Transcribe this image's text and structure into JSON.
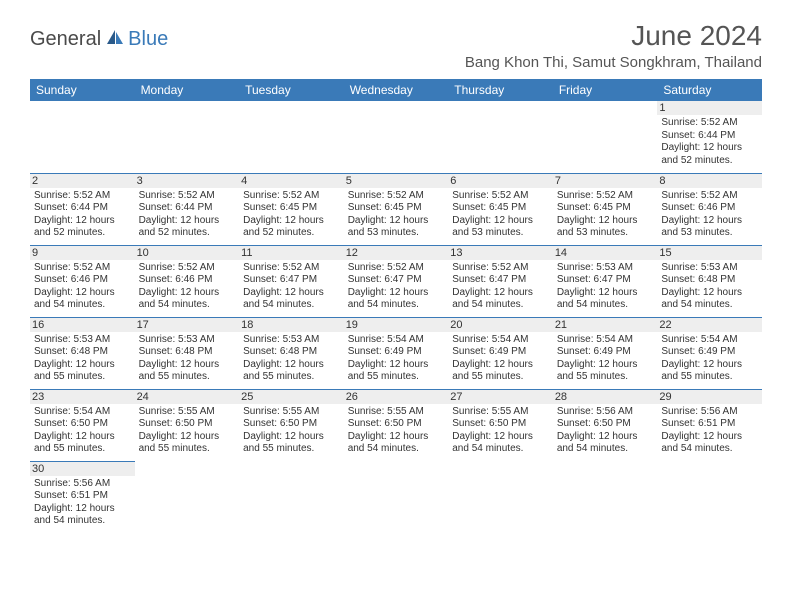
{
  "brand": {
    "part1": "General",
    "part2": "Blue"
  },
  "title": "June 2024",
  "location": "Bang Khon Thi, Samut Songkhram, Thailand",
  "colors": {
    "header_bg": "#3a7ab8",
    "header_text": "#ffffff",
    "daynum_bg": "#eeeeee",
    "border": "#3a7ab8",
    "title_color": "#555555",
    "body_text": "#333333",
    "logo_gray": "#4a4a4a",
    "logo_blue": "#3a7ab8",
    "page_bg": "#ffffff"
  },
  "fonts": {
    "title_size_pt": 21,
    "location_size_pt": 11,
    "weekday_size_pt": 9,
    "daynum_size_pt": 8,
    "body_size_pt": 7.5
  },
  "weekdays": [
    "Sunday",
    "Monday",
    "Tuesday",
    "Wednesday",
    "Thursday",
    "Friday",
    "Saturday"
  ],
  "weeks": [
    [
      {
        "empty": true
      },
      {
        "empty": true
      },
      {
        "empty": true
      },
      {
        "empty": true
      },
      {
        "empty": true
      },
      {
        "empty": true
      },
      {
        "day": "1",
        "sunrise": "Sunrise: 5:52 AM",
        "sunset": "Sunset: 6:44 PM",
        "daylight": "Daylight: 12 hours and 52 minutes."
      }
    ],
    [
      {
        "day": "2",
        "sunrise": "Sunrise: 5:52 AM",
        "sunset": "Sunset: 6:44 PM",
        "daylight": "Daylight: 12 hours and 52 minutes."
      },
      {
        "day": "3",
        "sunrise": "Sunrise: 5:52 AM",
        "sunset": "Sunset: 6:44 PM",
        "daylight": "Daylight: 12 hours and 52 minutes."
      },
      {
        "day": "4",
        "sunrise": "Sunrise: 5:52 AM",
        "sunset": "Sunset: 6:45 PM",
        "daylight": "Daylight: 12 hours and 52 minutes."
      },
      {
        "day": "5",
        "sunrise": "Sunrise: 5:52 AM",
        "sunset": "Sunset: 6:45 PM",
        "daylight": "Daylight: 12 hours and 53 minutes."
      },
      {
        "day": "6",
        "sunrise": "Sunrise: 5:52 AM",
        "sunset": "Sunset: 6:45 PM",
        "daylight": "Daylight: 12 hours and 53 minutes."
      },
      {
        "day": "7",
        "sunrise": "Sunrise: 5:52 AM",
        "sunset": "Sunset: 6:45 PM",
        "daylight": "Daylight: 12 hours and 53 minutes."
      },
      {
        "day": "8",
        "sunrise": "Sunrise: 5:52 AM",
        "sunset": "Sunset: 6:46 PM",
        "daylight": "Daylight: 12 hours and 53 minutes."
      }
    ],
    [
      {
        "day": "9",
        "sunrise": "Sunrise: 5:52 AM",
        "sunset": "Sunset: 6:46 PM",
        "daylight": "Daylight: 12 hours and 54 minutes."
      },
      {
        "day": "10",
        "sunrise": "Sunrise: 5:52 AM",
        "sunset": "Sunset: 6:46 PM",
        "daylight": "Daylight: 12 hours and 54 minutes."
      },
      {
        "day": "11",
        "sunrise": "Sunrise: 5:52 AM",
        "sunset": "Sunset: 6:47 PM",
        "daylight": "Daylight: 12 hours and 54 minutes."
      },
      {
        "day": "12",
        "sunrise": "Sunrise: 5:52 AM",
        "sunset": "Sunset: 6:47 PM",
        "daylight": "Daylight: 12 hours and 54 minutes."
      },
      {
        "day": "13",
        "sunrise": "Sunrise: 5:52 AM",
        "sunset": "Sunset: 6:47 PM",
        "daylight": "Daylight: 12 hours and 54 minutes."
      },
      {
        "day": "14",
        "sunrise": "Sunrise: 5:53 AM",
        "sunset": "Sunset: 6:47 PM",
        "daylight": "Daylight: 12 hours and 54 minutes."
      },
      {
        "day": "15",
        "sunrise": "Sunrise: 5:53 AM",
        "sunset": "Sunset: 6:48 PM",
        "daylight": "Daylight: 12 hours and 54 minutes."
      }
    ],
    [
      {
        "day": "16",
        "sunrise": "Sunrise: 5:53 AM",
        "sunset": "Sunset: 6:48 PM",
        "daylight": "Daylight: 12 hours and 55 minutes."
      },
      {
        "day": "17",
        "sunrise": "Sunrise: 5:53 AM",
        "sunset": "Sunset: 6:48 PM",
        "daylight": "Daylight: 12 hours and 55 minutes."
      },
      {
        "day": "18",
        "sunrise": "Sunrise: 5:53 AM",
        "sunset": "Sunset: 6:48 PM",
        "daylight": "Daylight: 12 hours and 55 minutes."
      },
      {
        "day": "19",
        "sunrise": "Sunrise: 5:54 AM",
        "sunset": "Sunset: 6:49 PM",
        "daylight": "Daylight: 12 hours and 55 minutes."
      },
      {
        "day": "20",
        "sunrise": "Sunrise: 5:54 AM",
        "sunset": "Sunset: 6:49 PM",
        "daylight": "Daylight: 12 hours and 55 minutes."
      },
      {
        "day": "21",
        "sunrise": "Sunrise: 5:54 AM",
        "sunset": "Sunset: 6:49 PM",
        "daylight": "Daylight: 12 hours and 55 minutes."
      },
      {
        "day": "22",
        "sunrise": "Sunrise: 5:54 AM",
        "sunset": "Sunset: 6:49 PM",
        "daylight": "Daylight: 12 hours and 55 minutes."
      }
    ],
    [
      {
        "day": "23",
        "sunrise": "Sunrise: 5:54 AM",
        "sunset": "Sunset: 6:50 PM",
        "daylight": "Daylight: 12 hours and 55 minutes."
      },
      {
        "day": "24",
        "sunrise": "Sunrise: 5:55 AM",
        "sunset": "Sunset: 6:50 PM",
        "daylight": "Daylight: 12 hours and 55 minutes."
      },
      {
        "day": "25",
        "sunrise": "Sunrise: 5:55 AM",
        "sunset": "Sunset: 6:50 PM",
        "daylight": "Daylight: 12 hours and 55 minutes."
      },
      {
        "day": "26",
        "sunrise": "Sunrise: 5:55 AM",
        "sunset": "Sunset: 6:50 PM",
        "daylight": "Daylight: 12 hours and 54 minutes."
      },
      {
        "day": "27",
        "sunrise": "Sunrise: 5:55 AM",
        "sunset": "Sunset: 6:50 PM",
        "daylight": "Daylight: 12 hours and 54 minutes."
      },
      {
        "day": "28",
        "sunrise": "Sunrise: 5:56 AM",
        "sunset": "Sunset: 6:50 PM",
        "daylight": "Daylight: 12 hours and 54 minutes."
      },
      {
        "day": "29",
        "sunrise": "Sunrise: 5:56 AM",
        "sunset": "Sunset: 6:51 PM",
        "daylight": "Daylight: 12 hours and 54 minutes."
      }
    ],
    [
      {
        "day": "30",
        "sunrise": "Sunrise: 5:56 AM",
        "sunset": "Sunset: 6:51 PM",
        "daylight": "Daylight: 12 hours and 54 minutes."
      },
      {
        "empty": true
      },
      {
        "empty": true
      },
      {
        "empty": true
      },
      {
        "empty": true
      },
      {
        "empty": true
      },
      {
        "empty": true
      }
    ]
  ]
}
